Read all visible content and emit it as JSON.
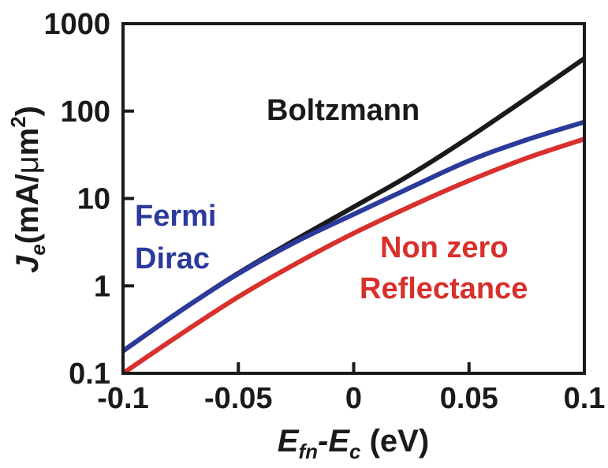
{
  "chart_data": {
    "type": "line",
    "title": "",
    "xlim": [
      -0.1,
      0.1
    ],
    "ylim": [
      0.1,
      1000
    ],
    "y_scale": "log",
    "grid": false,
    "x_ticks": [
      "-0.1",
      "-0.05",
      "0",
      "0.05",
      "0.1"
    ],
    "y_ticks": [
      "0.1",
      "1",
      "10",
      "100",
      "1000"
    ],
    "xlabel": {
      "main": "E",
      "sub1": "fn",
      "mid": "-E",
      "sub2": "c",
      "unit": " (eV)"
    },
    "ylabel": {
      "main": "J",
      "sub": "e",
      "unit_pre": "(mA/",
      "mu": "μ",
      "unit_m": "m",
      "sup": "2",
      "unit_post": ")"
    },
    "series": [
      {
        "name": "Boltzmann",
        "color": "#1a1a1a",
        "x": [
          -0.1,
          -0.075,
          -0.05,
          -0.025,
          0,
          0.025,
          0.05,
          0.075,
          0.1
        ],
        "y": [
          0.18,
          0.52,
          1.4,
          3.4,
          8.0,
          19,
          50,
          140,
          400
        ]
      },
      {
        "name": "Fermi Dirac",
        "color": "#2b3a9b",
        "x": [
          -0.1,
          -0.075,
          -0.05,
          -0.025,
          0,
          0.025,
          0.05,
          0.075,
          0.1
        ],
        "y": [
          0.18,
          0.52,
          1.38,
          3.2,
          6.6,
          13.5,
          27,
          47,
          75
        ]
      },
      {
        "name": "Non zero Reflectance",
        "color": "#d8302c",
        "x": [
          -0.1,
          -0.075,
          -0.05,
          -0.025,
          0,
          0.025,
          0.05,
          0.075,
          0.1
        ],
        "y": [
          0.1,
          0.28,
          0.75,
          1.8,
          4.0,
          8.2,
          16,
          29,
          48
        ]
      }
    ],
    "annotations": [
      {
        "text": "Boltzmann",
        "color": "#1a1a1a"
      },
      {
        "text": "Fermi",
        "color": "#2b3a9b"
      },
      {
        "text": "Dirac",
        "color": "#2b3a9b"
      },
      {
        "text": "Non zero",
        "color": "#d8302c"
      },
      {
        "text": "Reflectance",
        "color": "#d8302c"
      }
    ]
  }
}
